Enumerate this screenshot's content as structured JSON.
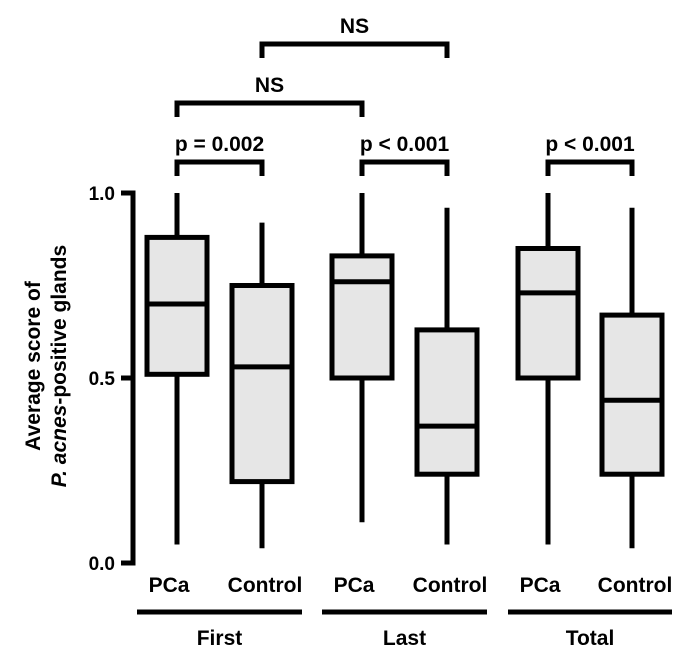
{
  "chart_data": {
    "type": "box",
    "ylabel_lines": [
      {
        "segments": [
          {
            "text": "Average score of",
            "italic": false
          }
        ]
      },
      {
        "segments": [
          {
            "text": "P. acnes",
            "italic": true
          },
          {
            "text": "-positive glands",
            "italic": false
          }
        ]
      }
    ],
    "ylim": [
      0.0,
      1.0
    ],
    "yticks": [
      {
        "value": 0.0,
        "label": "0.0"
      },
      {
        "value": 0.5,
        "label": "0.5"
      },
      {
        "value": 1.0,
        "label": "1.0"
      }
    ],
    "colors": {
      "box_fill": "#e6e6e6",
      "line": "#000000"
    },
    "groups": [
      {
        "label": "First",
        "boxes": [
          {
            "label": "PCa",
            "min": 0.05,
            "q1": 0.51,
            "median": 0.7,
            "q3": 0.88,
            "max": 1.0
          },
          {
            "label": "Control",
            "min": 0.04,
            "q1": 0.22,
            "median": 0.53,
            "q3": 0.75,
            "max": 0.92
          }
        ]
      },
      {
        "label": "Last",
        "boxes": [
          {
            "label": "PCa",
            "min": 0.11,
            "q1": 0.5,
            "median": 0.76,
            "q3": 0.83,
            "max": 1.0
          },
          {
            "label": "Control",
            "min": 0.05,
            "q1": 0.24,
            "median": 0.37,
            "q3": 0.63,
            "max": 0.96
          }
        ]
      },
      {
        "label": "Total",
        "boxes": [
          {
            "label": "PCa",
            "min": 0.05,
            "q1": 0.5,
            "median": 0.73,
            "q3": 0.85,
            "max": 1.0
          },
          {
            "label": "Control",
            "min": 0.04,
            "q1": 0.24,
            "median": 0.44,
            "q3": 0.67,
            "max": 0.96
          }
        ]
      }
    ],
    "annotations": [
      {
        "label": "p = 0.002",
        "from": [
          0,
          0
        ],
        "to": [
          0,
          1
        ],
        "level": 1
      },
      {
        "label": "p < 0.001",
        "from": [
          1,
          0
        ],
        "to": [
          1,
          1
        ],
        "level": 1
      },
      {
        "label": "p < 0.001",
        "from": [
          2,
          0
        ],
        "to": [
          2,
          1
        ],
        "level": 1
      },
      {
        "label": "NS",
        "from": [
          0,
          0
        ],
        "to": [
          1,
          0
        ],
        "level": 2
      },
      {
        "label": "NS",
        "from": [
          0,
          1
        ],
        "to": [
          1,
          1
        ],
        "level": 3
      }
    ]
  }
}
